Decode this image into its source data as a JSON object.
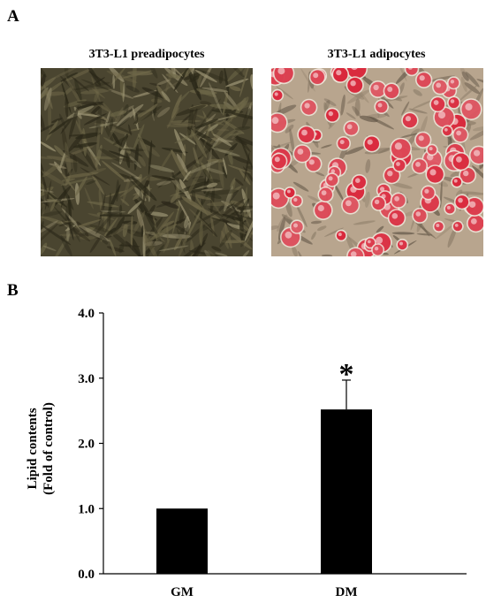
{
  "figure": {
    "panel_a_label": "A",
    "panel_b_label": "B",
    "image_left_title": "3T3-L1 preadipocytes",
    "image_right_title": "3T3-L1 adipocytes"
  },
  "colors": {
    "bar": "#000000",
    "stain_red": "#d9283c",
    "preadipocyte_bg": "#4a4530",
    "adipocyte_bg": "#b8a58e"
  },
  "chart_data": {
    "type": "bar",
    "categories": [
      "GM",
      "DM"
    ],
    "values": [
      1.0,
      2.52
    ],
    "errors": [
      0.0,
      0.45
    ],
    "ylabel_line1": "Lipid contents",
    "ylabel_line2": "(Fold of control)",
    "ylim": [
      0.0,
      4.0
    ],
    "yticks": [
      "0.0",
      "1.0",
      "2.0",
      "3.0",
      "4.0"
    ],
    "significance": [
      {
        "category": "DM",
        "symbol": "*"
      }
    ]
  }
}
